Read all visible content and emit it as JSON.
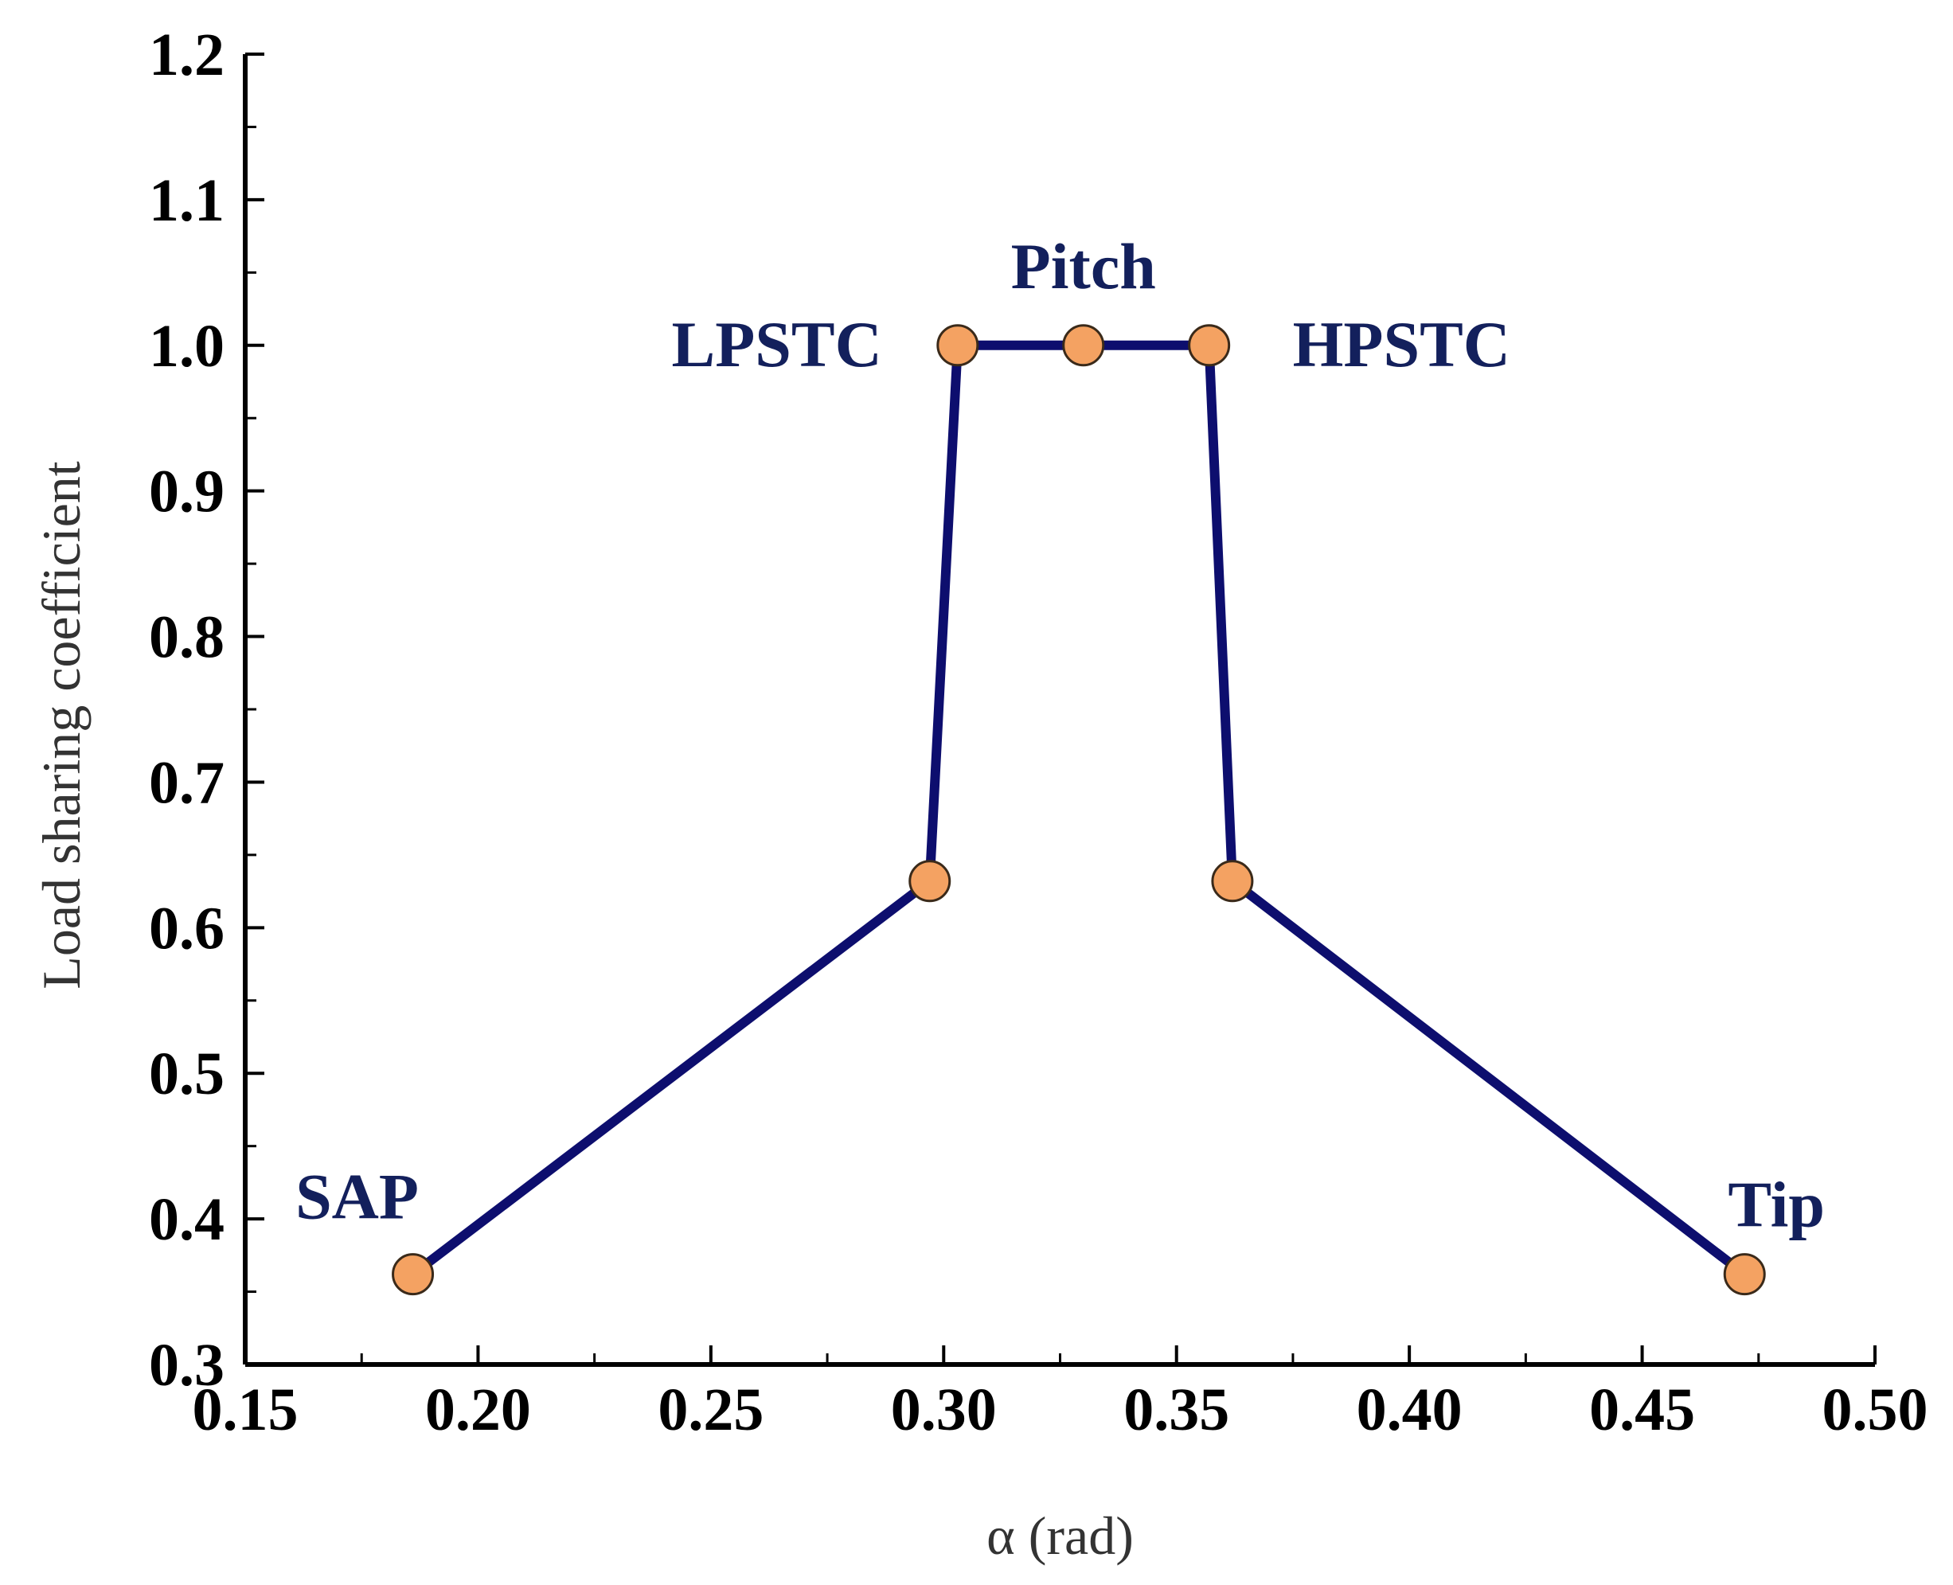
{
  "chart_data": {
    "type": "line",
    "xlabel": "α (rad)",
    "ylabel": "Load sharing coefficient",
    "xlim": [
      0.15,
      0.5
    ],
    "ylim": [
      0.3,
      1.2
    ],
    "x_ticks": [
      "0.15",
      "0.20",
      "0.25",
      "0.30",
      "0.35",
      "0.40",
      "0.45",
      "0.50"
    ],
    "y_ticks": [
      "0.3",
      "0.4",
      "0.5",
      "0.6",
      "0.7",
      "0.8",
      "0.9",
      "1.0",
      "1.1",
      "1.2"
    ],
    "series": [
      {
        "x": [
          0.186,
          0.297,
          0.303,
          0.33,
          0.357,
          0.362,
          0.472
        ],
        "y": [
          0.362,
          0.632,
          1.0,
          1.0,
          1.0,
          0.632,
          0.362
        ]
      }
    ],
    "annotations": [
      {
        "text": "SAP",
        "x": 0.186,
        "y": 0.362
      },
      {
        "text": "LPSTC",
        "x": 0.303,
        "y": 1.0
      },
      {
        "text": "Pitch",
        "x": 0.33,
        "y": 1.0
      },
      {
        "text": "HPSTC",
        "x": 0.357,
        "y": 1.0
      },
      {
        "text": "Tip",
        "x": 0.472,
        "y": 0.362
      }
    ],
    "grid": false,
    "legend": "none",
    "colors": {
      "line": "#0d0e6e",
      "marker_fill": "#f4a262",
      "marker_stroke": "#3a2a1a",
      "label": "#13205c",
      "axis": "#000000"
    }
  }
}
